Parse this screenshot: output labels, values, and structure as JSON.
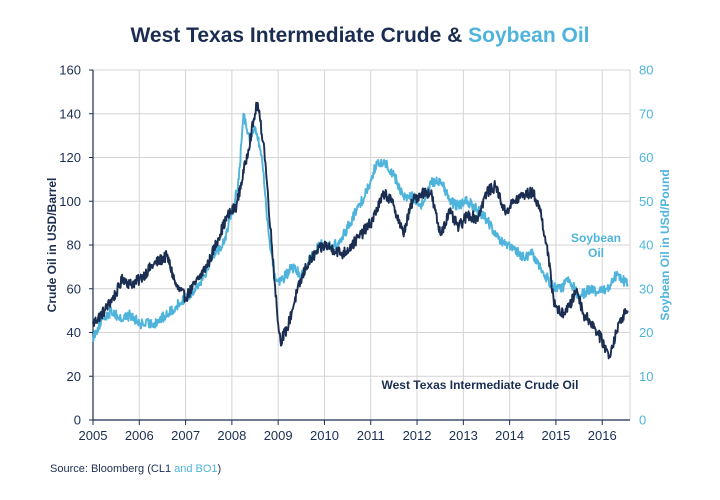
{
  "chart_data": {
    "type": "line",
    "title_part1": "West Texas Intermediate Crude & ",
    "title_part2": "Soybean Oil",
    "xlabel": "",
    "ylabel_left": "Crude Oil in USD/Barrel",
    "ylabel_right": "Soybean Oil in USd/Pound",
    "xlim": [
      2005,
      2016.6
    ],
    "x_ticks": [
      2005,
      2006,
      2007,
      2008,
      2009,
      2010,
      2011,
      2012,
      2013,
      2014,
      2015,
      2016
    ],
    "y_left_lim": [
      0,
      160
    ],
    "y_left_ticks": [
      0,
      20,
      40,
      60,
      80,
      100,
      120,
      140,
      160
    ],
    "y_right_lim": [
      0,
      80
    ],
    "y_right_ticks": [
      0,
      10,
      20,
      30,
      40,
      50,
      60,
      70,
      80
    ],
    "grid": true,
    "series": [
      {
        "name": "West Texas Intermediate Crude Oil",
        "axis": "left",
        "color": "#1b2e52",
        "label_line1": "West Texas Intermediate Crude Oil",
        "x": [
          2005.0,
          2005.25,
          2005.5,
          2005.65,
          2005.8,
          2006.0,
          2006.3,
          2006.6,
          2006.8,
          2007.0,
          2007.2,
          2007.5,
          2007.7,
          2007.9,
          2008.1,
          2008.3,
          2008.5,
          2008.55,
          2008.7,
          2008.9,
          2009.0,
          2009.05,
          2009.2,
          2009.4,
          2009.6,
          2009.8,
          2010.0,
          2010.2,
          2010.4,
          2010.6,
          2010.8,
          2011.0,
          2011.3,
          2011.5,
          2011.7,
          2011.9,
          2012.1,
          2012.3,
          2012.5,
          2012.7,
          2012.9,
          2013.1,
          2013.3,
          2013.5,
          2013.7,
          2013.9,
          2014.1,
          2014.3,
          2014.5,
          2014.65,
          2014.8,
          2014.95,
          2015.1,
          2015.3,
          2015.45,
          2015.6,
          2015.75,
          2015.9,
          2016.05,
          2016.15,
          2016.3,
          2016.45,
          2016.55
        ],
        "values": [
          44,
          50,
          58,
          65,
          62,
          64,
          71,
          75,
          61,
          56,
          62,
          72,
          83,
          93,
          98,
          118,
          140,
          145,
          124,
          70,
          44,
          36,
          42,
          58,
          70,
          76,
          80,
          78,
          76,
          80,
          85,
          90,
          104,
          98,
          85,
          100,
          104,
          104,
          85,
          95,
          88,
          94,
          92,
          104,
          107,
          95,
          100,
          103,
          104,
          97,
          80,
          55,
          48,
          52,
          60,
          48,
          45,
          40,
          34,
          29,
          40,
          48,
          50
        ]
      },
      {
        "name": "Soybean Oil",
        "axis": "right",
        "color": "#4fb4dc",
        "label_line1": "Soybean",
        "label_line2": "Oil",
        "x": [
          2005.0,
          2005.2,
          2005.4,
          2005.6,
          2005.8,
          2006.0,
          2006.3,
          2006.6,
          2006.8,
          2007.0,
          2007.2,
          2007.4,
          2007.6,
          2007.8,
          2008.0,
          2008.15,
          2008.25,
          2008.4,
          2008.5,
          2008.65,
          2008.8,
          2008.95,
          2009.1,
          2009.3,
          2009.5,
          2009.7,
          2009.9,
          2010.1,
          2010.3,
          2010.5,
          2010.7,
          2010.9,
          2011.1,
          2011.3,
          2011.5,
          2011.7,
          2011.9,
          2012.1,
          2012.3,
          2012.5,
          2012.7,
          2012.9,
          2013.1,
          2013.3,
          2013.5,
          2013.7,
          2013.9,
          2014.1,
          2014.3,
          2014.5,
          2014.7,
          2014.9,
          2015.1,
          2015.3,
          2015.5,
          2015.7,
          2015.9,
          2016.1,
          2016.3,
          2016.45,
          2016.55
        ],
        "values": [
          19,
          23,
          25,
          23,
          24,
          22,
          22,
          24,
          26,
          28,
          30,
          33,
          38,
          40,
          47,
          55,
          70,
          64,
          67,
          60,
          42,
          32,
          32,
          35,
          33,
          37,
          40,
          40,
          40,
          44,
          48,
          52,
          58,
          59,
          56,
          51,
          51,
          49,
          54,
          55,
          50,
          49,
          50,
          48,
          46,
          42,
          40,
          39,
          37,
          38,
          34,
          31,
          30,
          32,
          28,
          30,
          29,
          30,
          33,
          32,
          31
        ]
      }
    ]
  },
  "footer": {
    "source_prefix": "Source: Bloomberg (CL1 ",
    "source_accent": "and BO1",
    "source_suffix": ")"
  }
}
